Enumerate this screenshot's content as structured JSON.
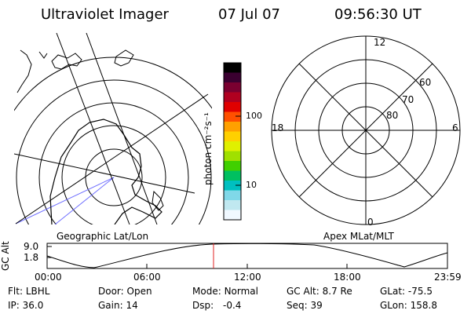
{
  "header": {
    "title": "Ultraviolet Imager",
    "date": "07 Jul 07",
    "time": "09:56:30 UT"
  },
  "colorbar": {
    "unit_label": "photon cm⁻²s⁻¹",
    "ticks": [
      "100",
      "10"
    ],
    "colors": [
      "#000000",
      "#3a0030",
      "#7a0030",
      "#b00020",
      "#e00000",
      "#ff5000",
      "#ffa000",
      "#ffd000",
      "#e0f000",
      "#a0e000",
      "#40d000",
      "#00c060",
      "#00c0c0",
      "#80d8e8",
      "#c0e8f0",
      "#f0f8ff"
    ]
  },
  "geo_panel": {
    "label": "Geographic Lat/Lon"
  },
  "mlt_panel": {
    "label": "Apex MLat/MLT",
    "mlt_labels": {
      "top": "12",
      "left": "18",
      "right": "6",
      "bottom": "0"
    },
    "lat_labels": [
      "60",
      "70",
      "80"
    ]
  },
  "timeline": {
    "y_axis_label": "GC Alt",
    "y_ticks": [
      "9.0",
      "1.8"
    ],
    "x_ticks": [
      "00:00",
      "06:00",
      "12:00",
      "18:00",
      "23:59"
    ],
    "current_marker_time": "09:56:30"
  },
  "footer": {
    "row1": [
      {
        "key": "Flt:",
        "val": "LBHL"
      },
      {
        "key": "Door:",
        "val": "Open"
      },
      {
        "key": "Mode:",
        "val": "Normal"
      },
      {
        "key": "GC Alt:",
        "val": "8.7 Re"
      },
      {
        "key": "GLat:",
        "val": "-75.5"
      }
    ],
    "row2": [
      {
        "key": "IP:",
        "val": "36.0"
      },
      {
        "key": "Gain:",
        "val": "14"
      },
      {
        "key": "Dsp:",
        "val": "-0.4"
      },
      {
        "key": "Seq:",
        "val": "39"
      },
      {
        "key": "GLon:",
        "val": "158.8"
      }
    ]
  }
}
